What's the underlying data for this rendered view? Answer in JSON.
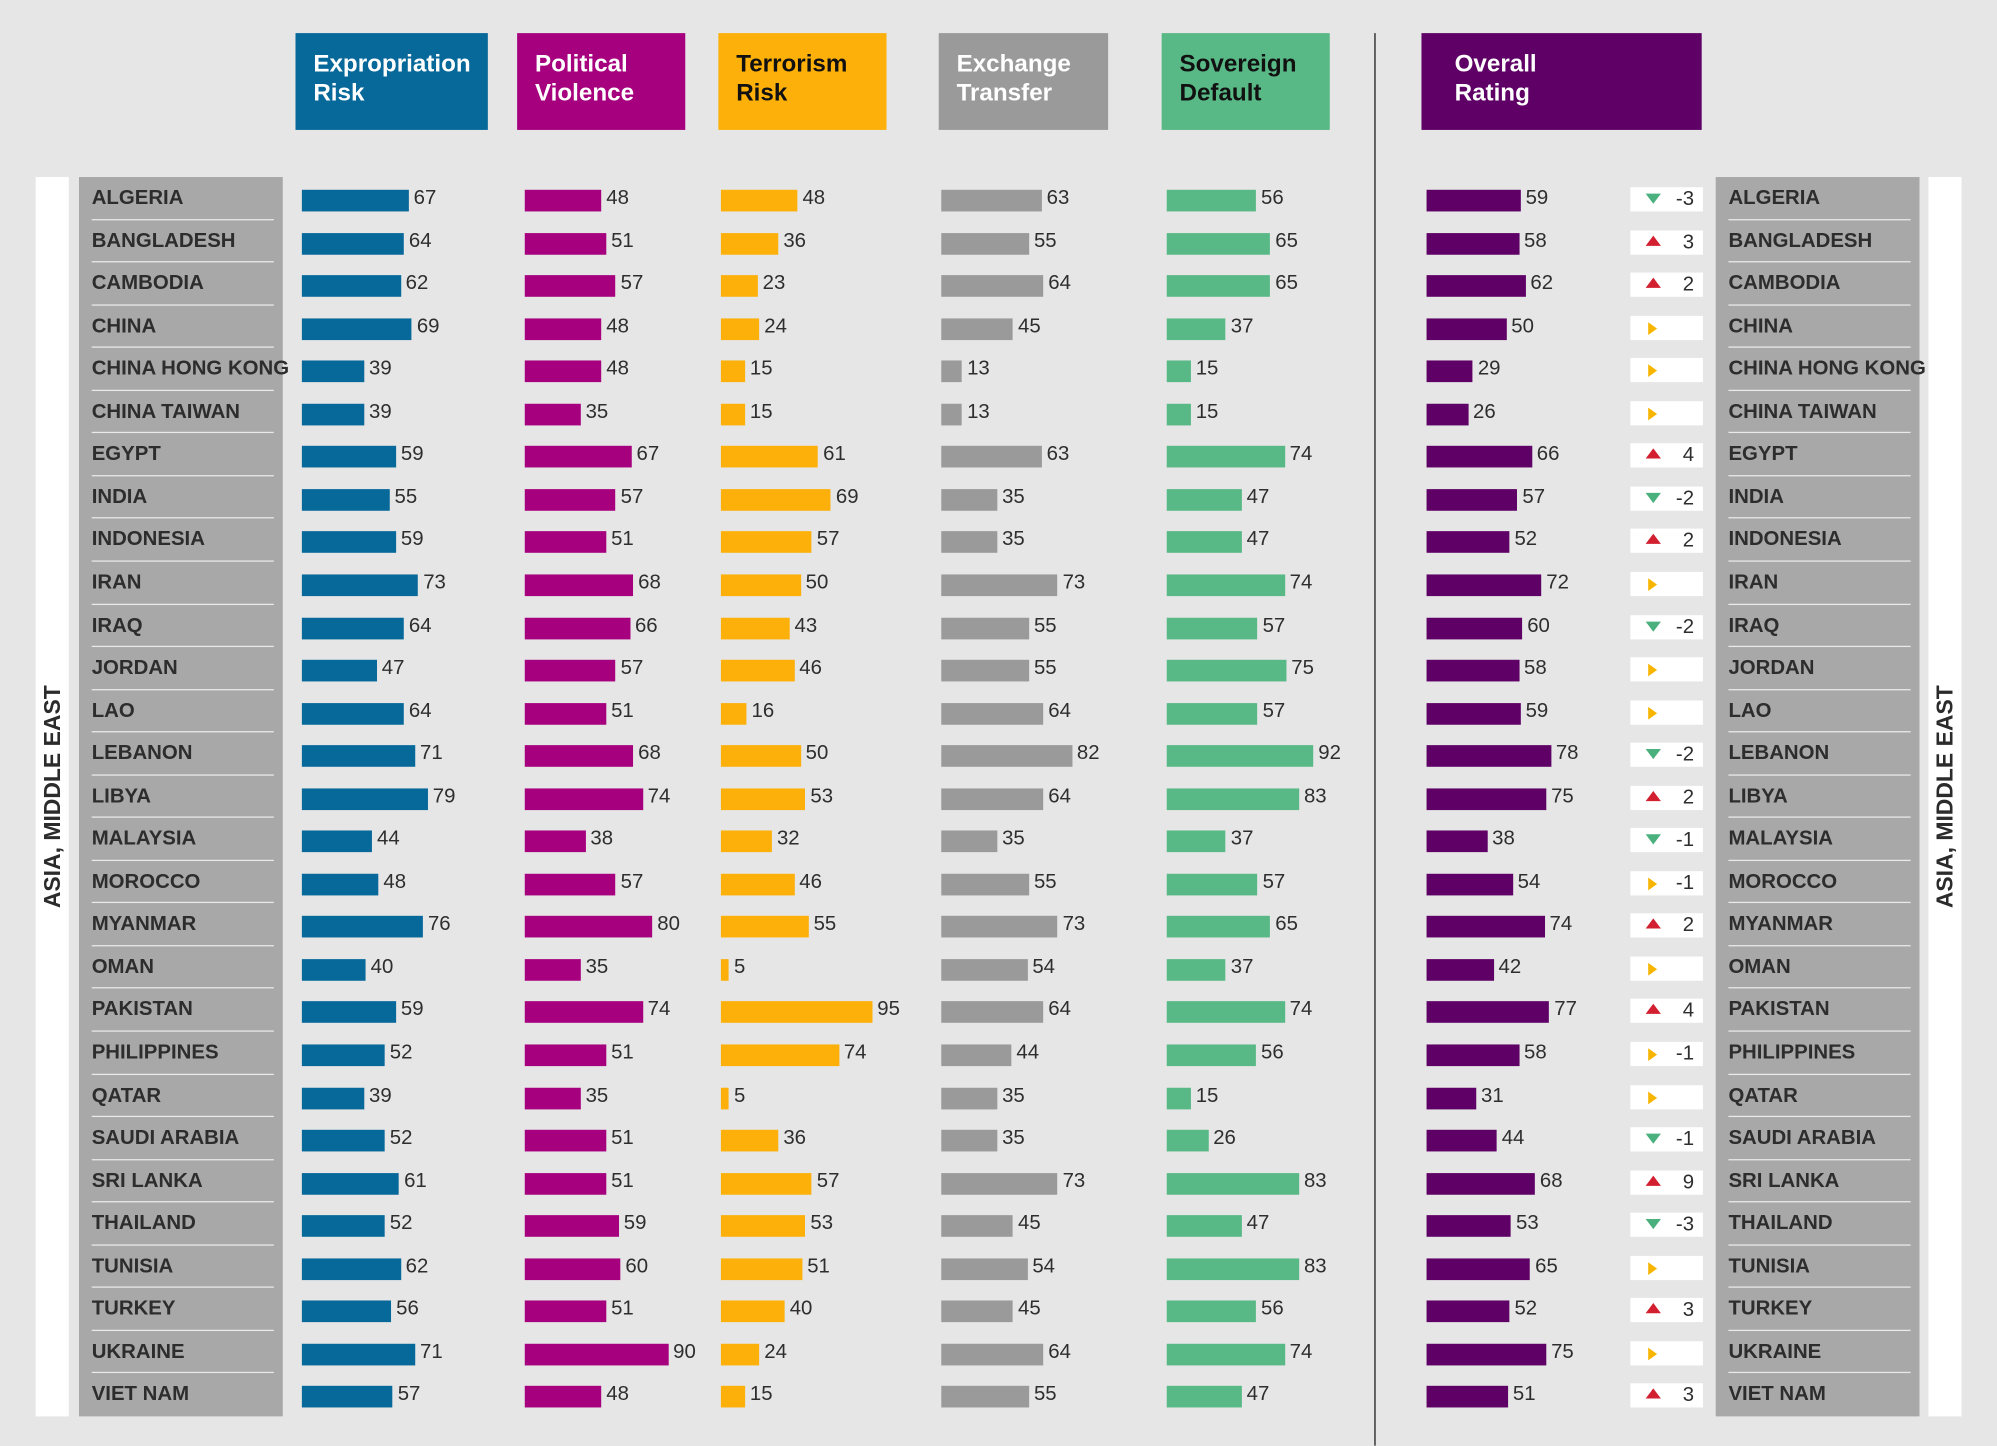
{
  "colors": {
    "expropriation": "#07689a",
    "political": "#a6007e",
    "terrorism": "#fdb009",
    "exchange": "#9a9a9a",
    "sovereign": "#59b986",
    "overall": "#5f0066",
    "up_arrow": "#d22030",
    "down_arrow": "#4ab07d",
    "neutral_arrow": "#f7b500"
  },
  "headers": [
    {
      "key": "expropriation",
      "label": "Expropriation\nRisk"
    },
    {
      "key": "political",
      "label": "Political\nViolence"
    },
    {
      "key": "terrorism",
      "label": "Terrorism\nRisk"
    },
    {
      "key": "exchange",
      "label": "Exchange\nTransfer"
    },
    {
      "key": "sovereign",
      "label": "Sovereign\nDefault"
    },
    {
      "key": "overall",
      "label": "Overall\nRating"
    }
  ],
  "region_label": "ASIA, MIDDLE EAST",
  "chart_data": {
    "type": "bar",
    "categories": [
      "ALGERIA",
      "BANGLADESH",
      "CAMBODIA",
      "CHINA",
      "CHINA HONG KONG",
      "CHINA TAIWAN",
      "EGYPT",
      "INDIA",
      "INDONESIA",
      "IRAN",
      "IRAQ",
      "JORDAN",
      "LAO",
      "LEBANON",
      "LIBYA",
      "MALAYSIA",
      "MOROCCO",
      "MYANMAR",
      "OMAN",
      "PAKISTAN",
      "PHILIPPINES",
      "QATAR",
      "SAUDI ARABIA",
      "SRI LANKA",
      "THAILAND",
      "TUNISIA",
      "TURKEY",
      "UKRAINE",
      "VIET NAM"
    ],
    "series": [
      {
        "name": "Expropriation Risk",
        "key": "expropriation",
        "values": [
          67,
          64,
          62,
          69,
          39,
          39,
          59,
          55,
          59,
          73,
          64,
          47,
          64,
          71,
          79,
          44,
          48,
          76,
          40,
          59,
          52,
          39,
          52,
          61,
          52,
          62,
          56,
          71,
          57
        ]
      },
      {
        "name": "Political Violence",
        "key": "political",
        "values": [
          48,
          51,
          57,
          48,
          48,
          35,
          67,
          57,
          51,
          68,
          66,
          57,
          51,
          68,
          74,
          38,
          57,
          80,
          35,
          74,
          51,
          35,
          51,
          51,
          59,
          60,
          51,
          90,
          48
        ]
      },
      {
        "name": "Terrorism Risk",
        "key": "terrorism",
        "values": [
          48,
          36,
          23,
          24,
          15,
          15,
          61,
          69,
          57,
          50,
          43,
          46,
          16,
          50,
          53,
          32,
          46,
          55,
          5,
          95,
          74,
          5,
          36,
          57,
          53,
          51,
          40,
          24,
          15
        ]
      },
      {
        "name": "Exchange Transfer",
        "key": "exchange",
        "values": [
          63,
          55,
          64,
          45,
          13,
          13,
          63,
          35,
          35,
          73,
          55,
          55,
          64,
          82,
          64,
          35,
          55,
          73,
          54,
          64,
          44,
          35,
          35,
          73,
          45,
          54,
          45,
          64,
          55
        ]
      },
      {
        "name": "Sovereign Default",
        "key": "sovereign",
        "values": [
          56,
          65,
          65,
          37,
          15,
          15,
          74,
          47,
          47,
          74,
          57,
          75,
          57,
          92,
          83,
          37,
          57,
          65,
          37,
          74,
          56,
          15,
          26,
          83,
          47,
          83,
          56,
          74,
          47
        ]
      },
      {
        "name": "Overall Rating",
        "key": "overall",
        "values": [
          59,
          58,
          62,
          50,
          29,
          26,
          66,
          57,
          52,
          72,
          60,
          58,
          59,
          78,
          75,
          38,
          54,
          74,
          42,
          77,
          58,
          31,
          44,
          68,
          53,
          65,
          52,
          75,
          51
        ]
      }
    ],
    "change": [
      {
        "dir": "down",
        "text": "-3"
      },
      {
        "dir": "up",
        "text": "3"
      },
      {
        "dir": "up",
        "text": "2"
      },
      {
        "dir": "neutral",
        "text": ""
      },
      {
        "dir": "neutral",
        "text": ""
      },
      {
        "dir": "neutral",
        "text": ""
      },
      {
        "dir": "up",
        "text": "4"
      },
      {
        "dir": "down",
        "text": "-2"
      },
      {
        "dir": "up",
        "text": "2"
      },
      {
        "dir": "neutral",
        "text": ""
      },
      {
        "dir": "down",
        "text": "-2"
      },
      {
        "dir": "neutral",
        "text": ""
      },
      {
        "dir": "neutral",
        "text": ""
      },
      {
        "dir": "down",
        "text": "-2"
      },
      {
        "dir": "up",
        "text": "2"
      },
      {
        "dir": "down",
        "text": "-1"
      },
      {
        "dir": "neutral",
        "text": "-1"
      },
      {
        "dir": "up",
        "text": "2"
      },
      {
        "dir": "neutral",
        "text": ""
      },
      {
        "dir": "up",
        "text": "4"
      },
      {
        "dir": "neutral",
        "text": "-1"
      },
      {
        "dir": "neutral",
        "text": ""
      },
      {
        "dir": "down",
        "text": "-1"
      },
      {
        "dir": "up",
        "text": "9"
      },
      {
        "dir": "down",
        "text": "-3"
      },
      {
        "dir": "neutral",
        "text": ""
      },
      {
        "dir": "up",
        "text": "3"
      },
      {
        "dir": "neutral",
        "text": ""
      },
      {
        "dir": "up",
        "text": "3"
      }
    ],
    "xlim": [
      0,
      100
    ],
    "grid": false,
    "legend": "column headers (top)"
  }
}
